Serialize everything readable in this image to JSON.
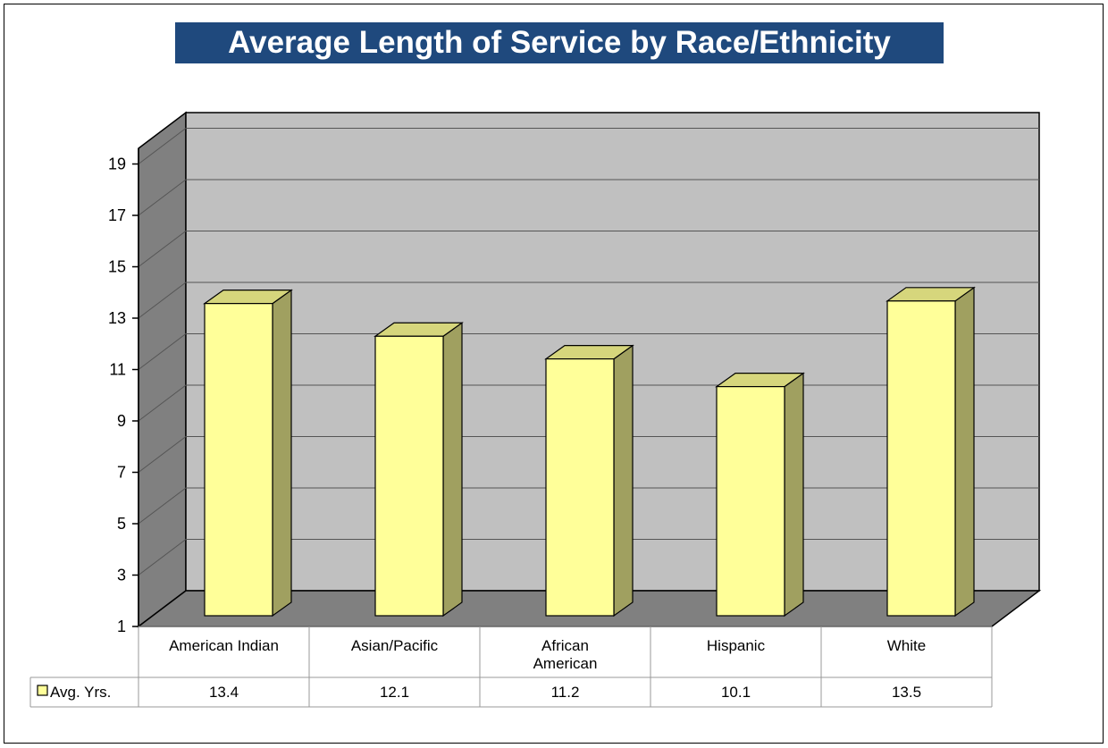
{
  "chart_data": {
    "type": "bar",
    "title": "Average Length of Service by Race/Ethnicity",
    "categories": [
      "American Indian",
      "Asian/Pacific",
      "African American",
      "Hispanic",
      "White"
    ],
    "category_lines": [
      [
        "American Indian"
      ],
      [
        "Asian/Pacific"
      ],
      [
        "African",
        "American"
      ],
      [
        "Hispanic"
      ],
      [
        "White"
      ]
    ],
    "series": [
      {
        "name": "Avg. Yrs.",
        "values": [
          13.4,
          12.1,
          11.2,
          10.1,
          13.5
        ],
        "labels": [
          "13.4",
          "12.1",
          "11.2",
          "10.1",
          "13.5"
        ]
      }
    ],
    "yticks": [
      1,
      3,
      5,
      7,
      9,
      11,
      13,
      15,
      17,
      19
    ],
    "ylim": [
      1,
      21
    ],
    "grid": true,
    "three_d": true,
    "data_table": true,
    "colors": {
      "bar_front": "#ffff99",
      "bar_side": "#a0a060",
      "bar_top": "#d6d67c",
      "wall": "#c0c0c0",
      "side_wall": "#808080",
      "floor": "#808080",
      "title_bg": "#1f497d"
    }
  }
}
